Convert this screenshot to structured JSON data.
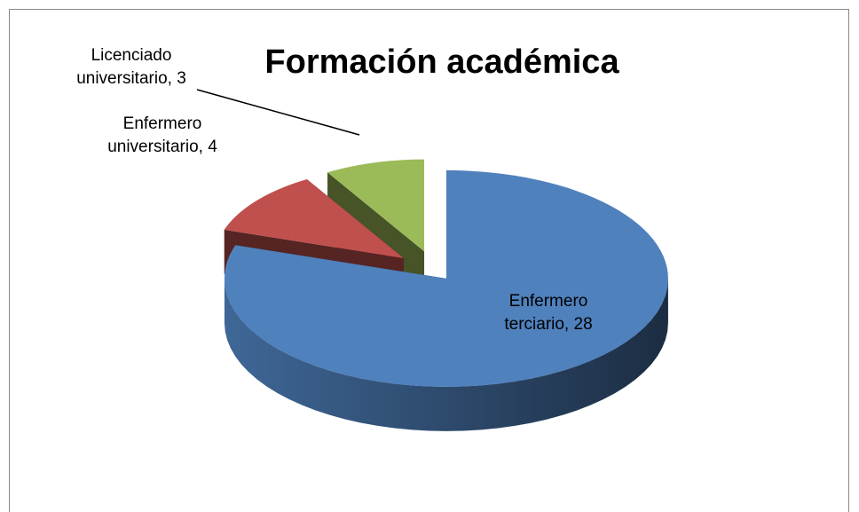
{
  "chart_data": {
    "type": "pie",
    "title": "Formación académica",
    "categories": [
      "Enfermero terciario",
      "Enfermero universitario",
      "Licenciado universitario"
    ],
    "values": [
      28,
      4,
      3
    ],
    "colors": [
      "#4f81bd",
      "#c0504d",
      "#9bbb59"
    ]
  }
}
